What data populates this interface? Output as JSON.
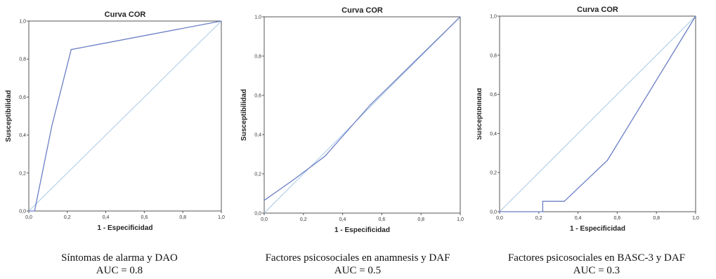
{
  "chart_data": [
    {
      "type": "line",
      "title": "Curva COR",
      "xlabel": "1 - Especificidad",
      "ylabel": "Susceptibilidad",
      "xlim": [
        0,
        1
      ],
      "ylim": [
        0,
        1
      ],
      "x_ticks": [
        "0,0",
        "0,2",
        "0,4",
        "0,6",
        "0,8",
        "1,0"
      ],
      "y_ticks": [
        "0,0",
        "0,2",
        "0,4",
        "0,6",
        "0,8",
        "1,0"
      ],
      "series": [
        {
          "role": "roc",
          "color": "#6b7fc6",
          "points": [
            [
              0,
              0
            ],
            [
              0.03,
              0
            ],
            [
              0.12,
              0.45
            ],
            [
              0.22,
              0.85
            ],
            [
              1,
              1
            ]
          ]
        },
        {
          "role": "reference",
          "color": "#a9c9e6",
          "points": [
            [
              0,
              0
            ],
            [
              1,
              1
            ]
          ]
        }
      ],
      "caption_line1": "Síntomas de alarma y DAO",
      "caption_line2": "AUC = 0.8"
    },
    {
      "type": "line",
      "title": "Curva COR",
      "xlabel": "1 - Especificidad",
      "ylabel": "Susceptibilidad",
      "xlim": [
        0,
        1
      ],
      "ylim": [
        0,
        1
      ],
      "x_ticks": [
        "0,0",
        "0,2",
        "0,4",
        "0,6",
        "0,8",
        "1,0"
      ],
      "y_ticks": [
        "0,0",
        "0,2",
        "0,4",
        "0,6",
        "0,8",
        "1,0"
      ],
      "series": [
        {
          "role": "roc",
          "color": "#6b7fc6",
          "points": [
            [
              0,
              0.065
            ],
            [
              0.15,
              0.17
            ],
            [
              0.31,
              0.29
            ],
            [
              0.54,
              0.55
            ],
            [
              1,
              1
            ]
          ]
        },
        {
          "role": "reference",
          "color": "#a9c9e6",
          "points": [
            [
              0,
              0
            ],
            [
              1,
              1
            ]
          ]
        }
      ],
      "caption_line1": "Factores psicosociales en anamnesis y DAF",
      "caption_line2": "AUC = 0.5"
    },
    {
      "type": "line",
      "title": "Curva COR",
      "xlabel": "1 - Especificidad",
      "ylabel": "Susceptibilidad",
      "xlim": [
        0,
        1
      ],
      "ylim": [
        0,
        1
      ],
      "x_ticks": [
        "0,0",
        "0,2",
        "0,4",
        "0,6",
        "0,8",
        "1,0"
      ],
      "y_ticks": [
        "0,0",
        "0,2",
        "0,4",
        "0,6",
        "0,8",
        "1,0"
      ],
      "series": [
        {
          "role": "roc",
          "color": "#6b7fc6",
          "points": [
            [
              0,
              0
            ],
            [
              0.22,
              0
            ],
            [
              0.22,
              0.053
            ],
            [
              0.33,
              0.053
            ],
            [
              0.55,
              0.263
            ],
            [
              1,
              1
            ]
          ]
        },
        {
          "role": "reference",
          "color": "#a9c9e6",
          "points": [
            [
              0,
              0
            ],
            [
              1,
              1
            ]
          ]
        }
      ],
      "caption_line1": "Factores psicosociales en BASC-3 y DAF",
      "caption_line2": "AUC = 0.3"
    }
  ]
}
